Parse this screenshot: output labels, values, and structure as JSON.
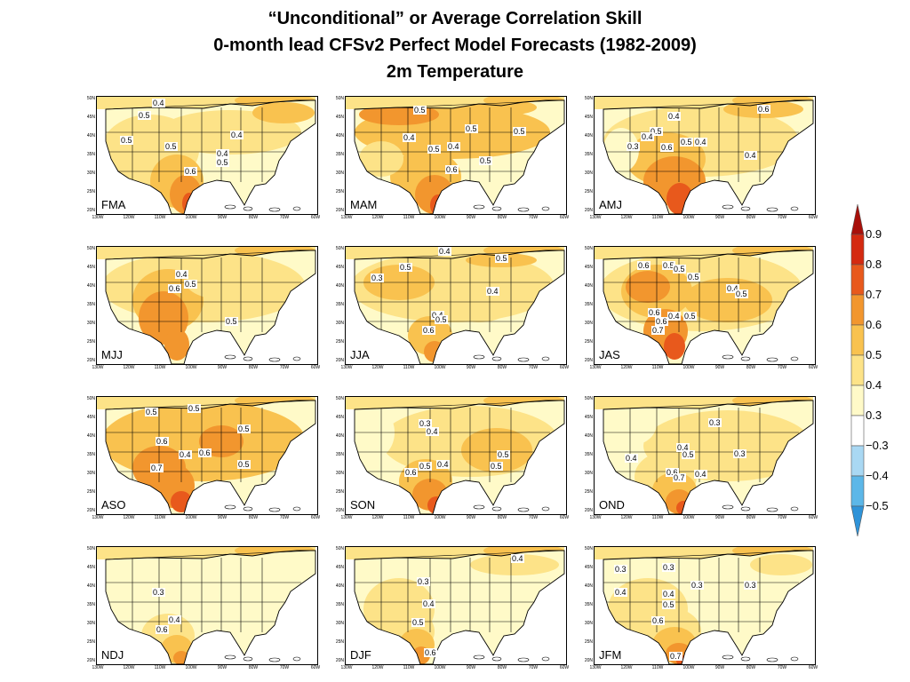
{
  "title": {
    "line1": "“Unconditional” or Average Correlation Skill",
    "line2": "0-month lead CFSv2 Perfect Model Forecasts (1982-2009)",
    "line3": "2m Temperature"
  },
  "axes": {
    "y_ticks": [
      "50N",
      "45N",
      "40N",
      "35N",
      "30N",
      "25N",
      "20N"
    ],
    "x_ticks": [
      "130W",
      "120W",
      "110W",
      "100W",
      "90W",
      "80W",
      "70W",
      "60W"
    ]
  },
  "colors": {
    "c03": "#fffac8",
    "c04": "#fde388",
    "c05": "#f9c24f",
    "c06": "#f2962e",
    "c07": "#e8591c",
    "c08": "#d42a10",
    "c09": "#a8100a",
    "n03": "#a9d8f3",
    "n04": "#5cb7e8",
    "n05": "#2f93d8"
  },
  "colorbar": {
    "labels": [
      "0.9",
      "0.8",
      "0.7",
      "0.6",
      "0.5",
      "0.4",
      "0.3",
      "−0.3",
      "−0.4",
      "−0.5"
    ]
  },
  "panels": [
    {
      "label": "FMA",
      "contour_labels": [
        "0.4",
        "0.5",
        "0.5",
        "0.5",
        "0.4",
        "0.4",
        "0.5",
        "0.6"
      ]
    },
    {
      "label": "MAM",
      "contour_labels": [
        "0.5",
        "0.5",
        "0.4",
        "0.5",
        "0.4",
        "0.5",
        "0.5",
        "0.6"
      ]
    },
    {
      "label": "AMJ",
      "contour_labels": [
        "0.6",
        "0.4",
        "0.5",
        "0.4",
        "0.3",
        "0.5",
        "0.4",
        "0.6",
        "0.4"
      ]
    },
    {
      "label": "MJJ",
      "contour_labels": [
        "0.4",
        "0.5",
        "0.6",
        "0.5"
      ]
    },
    {
      "label": "JJA",
      "contour_labels": [
        "0.4",
        "0.5",
        "0.5",
        "0.3",
        "0.4",
        "0.4",
        "0.5",
        "0.6"
      ]
    },
    {
      "label": "JAS",
      "contour_labels": [
        "0.6",
        "0.5",
        "0.5",
        "0.5",
        "0.4",
        "0.5",
        "0.6",
        "0.4",
        "0.5",
        "0.6",
        "0.7"
      ]
    },
    {
      "label": "ASO",
      "contour_labels": [
        "0.5",
        "0.5",
        "0.5",
        "0.6",
        "0.4",
        "0.6",
        "0.5",
        "0.7"
      ]
    },
    {
      "label": "SON",
      "contour_labels": [
        "0.3",
        "0.4",
        "0.5",
        "0.5",
        "0.4",
        "0.5",
        "0.6"
      ]
    },
    {
      "label": "OND",
      "contour_labels": [
        "0.3",
        "0.4",
        "0.5",
        "0.4",
        "0.3",
        "0.6",
        "0.4",
        "0.7"
      ]
    },
    {
      "label": "NDJ",
      "contour_labels": [
        "0.3",
        "0.4",
        "0.6"
      ]
    },
    {
      "label": "DJF",
      "contour_labels": [
        "0.4",
        "0.3",
        "0.4",
        "0.5",
        "0.6"
      ]
    },
    {
      "label": "JFM",
      "contour_labels": [
        "0.3",
        "0.3",
        "0.3",
        "0.3",
        "0.4",
        "0.4",
        "0.5",
        "0.6",
        "0.7"
      ]
    }
  ]
}
